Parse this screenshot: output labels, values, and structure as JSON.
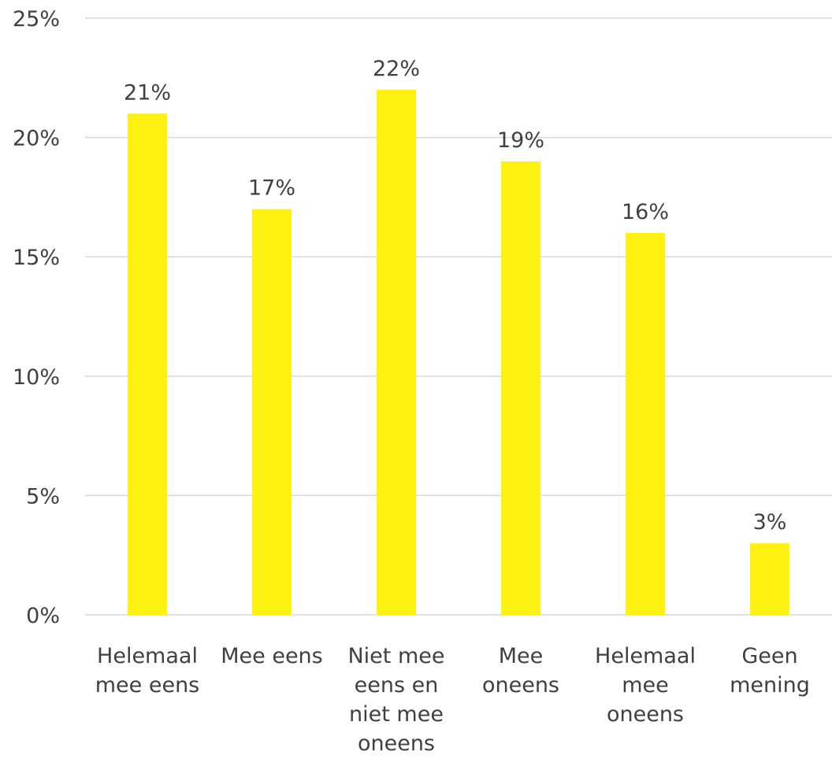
{
  "chart_data": {
    "type": "bar",
    "categories": [
      [
        "Helemaal",
        "mee eens"
      ],
      [
        "Mee eens"
      ],
      [
        "Niet mee",
        "eens en",
        "niet mee",
        "oneens"
      ],
      [
        "Mee",
        "oneens"
      ],
      [
        "Helemaal",
        "mee",
        "oneens"
      ],
      [
        "Geen",
        "mening"
      ]
    ],
    "values": [
      21,
      17,
      22,
      19,
      16,
      3
    ],
    "value_labels": [
      "21%",
      "17%",
      "22%",
      "19%",
      "16%",
      "3%"
    ],
    "ylim": [
      0,
      25
    ],
    "yticks": [
      0,
      5,
      10,
      15,
      20,
      25
    ],
    "ytick_labels": [
      "0%",
      "5%",
      "10%",
      "15%",
      "20%",
      "25%"
    ],
    "grid": true,
    "legend": "none",
    "title": "",
    "xlabel": "",
    "ylabel": ""
  },
  "colors": {
    "bar": "#FFF212",
    "grid": "#D9D9D9",
    "text": "#404040",
    "axis": "#D9D9D9"
  }
}
